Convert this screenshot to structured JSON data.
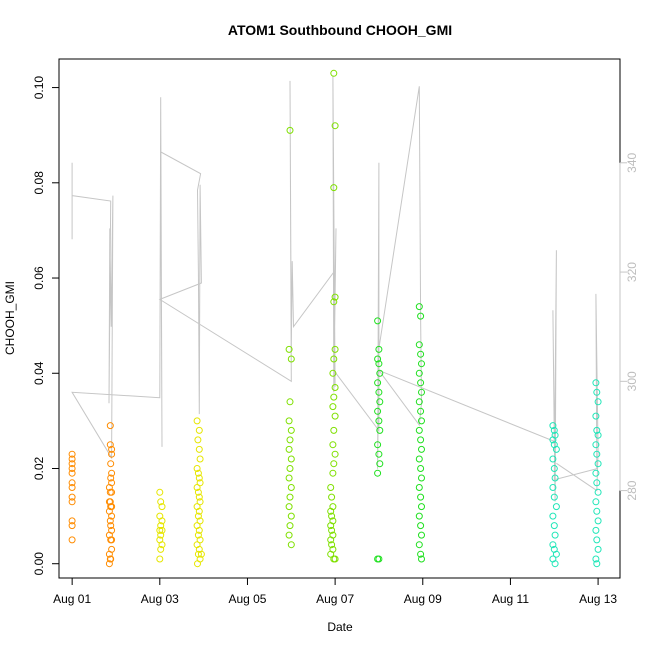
{
  "chart_data": {
    "type": "scatter",
    "title": "ATOM1 Southbound CHOOH_GMI",
    "xlabel": "Date",
    "ylabel": "CHOOH_GMI",
    "x_ticks": [
      "Aug 01",
      "Aug 03",
      "Aug 05",
      "Aug 07",
      "Aug 09",
      "Aug 11",
      "Aug 13"
    ],
    "x_tick_days": [
      1,
      3,
      5,
      7,
      9,
      11,
      13
    ],
    "xlim_days": [
      0.7,
      13.5
    ],
    "ylim": [
      -0.003,
      0.106
    ],
    "y_ticks": [
      0.0,
      0.02,
      0.04,
      0.06,
      0.08,
      0.1
    ],
    "y_tick_labels": [
      "0.00",
      "0.02",
      "0.04",
      "0.06",
      "0.08",
      "0.10"
    ],
    "y2_lim": [
      264,
      359
    ],
    "y2_ticks": [
      280,
      300,
      320,
      340
    ],
    "y2_tick_labels": [
      "280",
      "300",
      "320",
      "340"
    ],
    "y2_color": "#c6c6c6",
    "grid": false,
    "legend": "none",
    "series": [
      {
        "color": "#ff8c00",
        "points": [
          [
            1.0,
            0.023
          ],
          [
            1.0,
            0.022
          ],
          [
            1.0,
            0.021
          ],
          [
            1.0,
            0.02
          ],
          [
            1.0,
            0.019
          ],
          [
            1.0,
            0.017
          ],
          [
            1.0,
            0.016
          ],
          [
            1.0,
            0.014
          ],
          [
            1.0,
            0.013
          ],
          [
            1.0,
            0.009
          ],
          [
            1.0,
            0.008
          ],
          [
            1.0,
            0.005
          ],
          [
            1.87,
            0.029
          ],
          [
            1.87,
            0.025
          ],
          [
            1.9,
            0.024
          ],
          [
            1.9,
            0.023
          ],
          [
            1.88,
            0.021
          ],
          [
            1.9,
            0.019
          ],
          [
            1.88,
            0.018
          ],
          [
            1.9,
            0.017
          ],
          [
            1.85,
            0.016
          ],
          [
            1.87,
            0.015
          ],
          [
            1.9,
            0.015
          ],
          [
            1.85,
            0.013
          ],
          [
            1.87,
            0.013
          ],
          [
            1.9,
            0.012
          ],
          [
            1.88,
            0.012
          ],
          [
            1.85,
            0.011
          ],
          [
            1.9,
            0.01
          ],
          [
            1.87,
            0.009
          ],
          [
            1.88,
            0.008
          ],
          [
            1.9,
            0.007
          ],
          [
            1.85,
            0.006
          ],
          [
            1.88,
            0.005
          ],
          [
            1.9,
            0.005
          ],
          [
            1.85,
            0.002
          ],
          [
            1.87,
            0.001
          ],
          [
            1.88,
            0.001
          ],
          [
            1.85,
            0.0
          ],
          [
            1.9,
            0.003
          ]
        ]
      },
      {
        "color": "#e6e600",
        "points": [
          [
            3.0,
            0.015
          ],
          [
            3.02,
            0.013
          ],
          [
            3.05,
            0.012
          ],
          [
            3.0,
            0.01
          ],
          [
            3.05,
            0.009
          ],
          [
            3.02,
            0.008
          ],
          [
            3.0,
            0.007
          ],
          [
            3.05,
            0.007
          ],
          [
            3.02,
            0.006
          ],
          [
            3.0,
            0.005
          ],
          [
            3.05,
            0.004
          ],
          [
            3.02,
            0.003
          ],
          [
            3.0,
            0.001
          ],
          [
            3.85,
            0.03
          ],
          [
            3.9,
            0.028
          ],
          [
            3.87,
            0.026
          ],
          [
            3.9,
            0.024
          ],
          [
            3.92,
            0.022
          ],
          [
            3.85,
            0.02
          ],
          [
            3.88,
            0.019
          ],
          [
            3.9,
            0.018
          ],
          [
            3.92,
            0.017
          ],
          [
            3.85,
            0.016
          ],
          [
            3.88,
            0.015
          ],
          [
            3.9,
            0.014
          ],
          [
            3.92,
            0.013
          ],
          [
            3.85,
            0.012
          ],
          [
            3.9,
            0.011
          ],
          [
            3.88,
            0.01
          ],
          [
            3.92,
            0.009
          ],
          [
            3.85,
            0.008
          ],
          [
            3.9,
            0.007
          ],
          [
            3.88,
            0.006
          ],
          [
            3.92,
            0.005
          ],
          [
            3.85,
            0.004
          ],
          [
            3.9,
            0.003
          ],
          [
            3.88,
            0.002
          ],
          [
            3.92,
            0.001
          ],
          [
            3.86,
            0.0
          ],
          [
            3.95,
            0.002
          ]
        ]
      },
      {
        "color": "#7fe000",
        "points": [
          [
            5.97,
            0.091
          ],
          [
            5.95,
            0.045
          ],
          [
            6.0,
            0.043
          ],
          [
            5.97,
            0.034
          ],
          [
            5.95,
            0.03
          ],
          [
            6.0,
            0.028
          ],
          [
            5.97,
            0.026
          ],
          [
            5.95,
            0.024
          ],
          [
            6.0,
            0.022
          ],
          [
            5.97,
            0.02
          ],
          [
            5.95,
            0.018
          ],
          [
            6.0,
            0.016
          ],
          [
            5.97,
            0.014
          ],
          [
            5.95,
            0.012
          ],
          [
            6.0,
            0.01
          ],
          [
            5.97,
            0.008
          ],
          [
            5.95,
            0.006
          ],
          [
            6.0,
            0.004
          ],
          [
            6.97,
            0.103
          ],
          [
            7.0,
            0.092
          ],
          [
            6.97,
            0.079
          ],
          [
            7.0,
            0.056
          ],
          [
            6.97,
            0.055
          ],
          [
            7.0,
            0.045
          ],
          [
            6.97,
            0.043
          ],
          [
            6.95,
            0.04
          ],
          [
            7.0,
            0.037
          ],
          [
            6.97,
            0.035
          ],
          [
            6.95,
            0.033
          ],
          [
            7.0,
            0.031
          ],
          [
            6.97,
            0.028
          ],
          [
            6.95,
            0.025
          ],
          [
            7.0,
            0.023
          ],
          [
            6.97,
            0.021
          ],
          [
            6.95,
            0.019
          ],
          [
            6.9,
            0.016
          ],
          [
            6.92,
            0.014
          ],
          [
            6.95,
            0.012
          ],
          [
            6.9,
            0.011
          ],
          [
            6.92,
            0.01
          ],
          [
            6.95,
            0.009
          ],
          [
            6.9,
            0.008
          ],
          [
            6.92,
            0.007
          ],
          [
            6.95,
            0.006
          ],
          [
            6.9,
            0.005
          ],
          [
            6.92,
            0.004
          ],
          [
            6.95,
            0.003
          ],
          [
            6.9,
            0.002
          ],
          [
            6.97,
            0.001
          ],
          [
            7.0,
            0.001
          ]
        ]
      },
      {
        "color": "#1fe01f",
        "points": [
          [
            7.97,
            0.051
          ],
          [
            8.0,
            0.045
          ],
          [
            7.97,
            0.043
          ],
          [
            8.0,
            0.042
          ],
          [
            8.02,
            0.04
          ],
          [
            7.97,
            0.038
          ],
          [
            8.0,
            0.036
          ],
          [
            8.02,
            0.034
          ],
          [
            7.97,
            0.032
          ],
          [
            8.0,
            0.03
          ],
          [
            8.02,
            0.028
          ],
          [
            7.97,
            0.025
          ],
          [
            8.0,
            0.023
          ],
          [
            8.02,
            0.021
          ],
          [
            7.97,
            0.019
          ],
          [
            8.0,
            0.001
          ],
          [
            7.97,
            0.001
          ],
          [
            8.92,
            0.054
          ],
          [
            8.95,
            0.052
          ],
          [
            8.92,
            0.046
          ],
          [
            8.95,
            0.044
          ],
          [
            8.97,
            0.042
          ],
          [
            8.92,
            0.04
          ],
          [
            8.95,
            0.038
          ],
          [
            8.97,
            0.036
          ],
          [
            8.92,
            0.034
          ],
          [
            8.95,
            0.032
          ],
          [
            8.97,
            0.03
          ],
          [
            8.92,
            0.028
          ],
          [
            8.95,
            0.026
          ],
          [
            8.97,
            0.024
          ],
          [
            8.92,
            0.022
          ],
          [
            8.95,
            0.02
          ],
          [
            8.97,
            0.018
          ],
          [
            8.92,
            0.016
          ],
          [
            8.95,
            0.014
          ],
          [
            8.97,
            0.012
          ],
          [
            8.92,
            0.01
          ],
          [
            8.95,
            0.008
          ],
          [
            8.97,
            0.006
          ],
          [
            8.92,
            0.004
          ],
          [
            8.95,
            0.002
          ],
          [
            8.97,
            0.001
          ]
        ]
      },
      {
        "color": "#20e6b8",
        "points": [
          [
            11.97,
            0.029
          ],
          [
            12.0,
            0.028
          ],
          [
            12.02,
            0.027
          ],
          [
            11.97,
            0.026
          ],
          [
            12.0,
            0.025
          ],
          [
            12.05,
            0.024
          ],
          [
            11.97,
            0.022
          ],
          [
            12.0,
            0.02
          ],
          [
            12.02,
            0.018
          ],
          [
            11.97,
            0.016
          ],
          [
            12.0,
            0.014
          ],
          [
            12.05,
            0.012
          ],
          [
            11.97,
            0.01
          ],
          [
            12.0,
            0.008
          ],
          [
            12.02,
            0.006
          ],
          [
            11.97,
            0.004
          ],
          [
            12.0,
            0.003
          ],
          [
            12.05,
            0.002
          ],
          [
            11.97,
            0.001
          ],
          [
            12.02,
            0.0
          ],
          [
            12.95,
            0.038
          ],
          [
            12.97,
            0.036
          ],
          [
            13.0,
            0.034
          ],
          [
            12.95,
            0.031
          ],
          [
            12.97,
            0.028
          ],
          [
            13.0,
            0.027
          ],
          [
            12.95,
            0.025
          ],
          [
            12.97,
            0.023
          ],
          [
            13.0,
            0.021
          ],
          [
            12.95,
            0.019
          ],
          [
            12.97,
            0.017
          ],
          [
            13.0,
            0.015
          ],
          [
            12.95,
            0.013
          ],
          [
            12.97,
            0.011
          ],
          [
            13.0,
            0.009
          ],
          [
            12.95,
            0.007
          ],
          [
            12.97,
            0.005
          ],
          [
            13.0,
            0.003
          ],
          [
            12.95,
            0.001
          ],
          [
            12.97,
            0.0
          ]
        ]
      }
    ],
    "y2_line": [
      [
        1.0,
        340
      ],
      [
        1.0,
        326
      ],
      [
        1.0,
        334
      ],
      [
        1.88,
        333
      ],
      [
        1.84,
        296
      ],
      [
        1.86,
        328
      ],
      [
        1.89,
        310
      ],
      [
        1.91,
        323
      ],
      [
        1.93,
        334
      ],
      [
        1.9,
        286
      ],
      [
        1.0,
        298
      ],
      [
        3.0,
        297
      ],
      [
        3.02,
        352
      ],
      [
        3.05,
        288
      ],
      [
        3.02,
        342
      ],
      [
        3.93,
        338
      ],
      [
        3.86,
        335
      ],
      [
        3.88,
        320
      ],
      [
        3.9,
        294
      ],
      [
        3.92,
        336
      ],
      [
        3.95,
        318
      ],
      [
        3.0,
        315
      ],
      [
        6.0,
        300
      ],
      [
        5.97,
        355
      ],
      [
        6.0,
        306
      ],
      [
        6.02,
        322
      ],
      [
        6.05,
        310
      ],
      [
        6.97,
        320
      ],
      [
        7.0,
        299
      ],
      [
        6.95,
        356
      ],
      [
        6.97,
        298
      ],
      [
        7.02,
        328
      ],
      [
        6.97,
        302
      ],
      [
        8.0,
        291
      ],
      [
        8.0,
        340
      ],
      [
        7.97,
        284
      ],
      [
        8.0,
        306
      ],
      [
        8.92,
        354
      ],
      [
        8.95,
        312
      ],
      [
        8.97,
        296
      ],
      [
        8.92,
        292
      ],
      [
        8.0,
        302
      ],
      [
        12.0,
        289
      ],
      [
        11.97,
        313
      ],
      [
        12.02,
        278
      ],
      [
        12.05,
        324
      ],
      [
        12.0,
        282
      ],
      [
        12.97,
        284
      ],
      [
        12.95,
        316
      ],
      [
        13.0,
        287
      ],
      [
        12.97,
        280
      ],
      [
        12.05,
        285
      ]
    ]
  }
}
